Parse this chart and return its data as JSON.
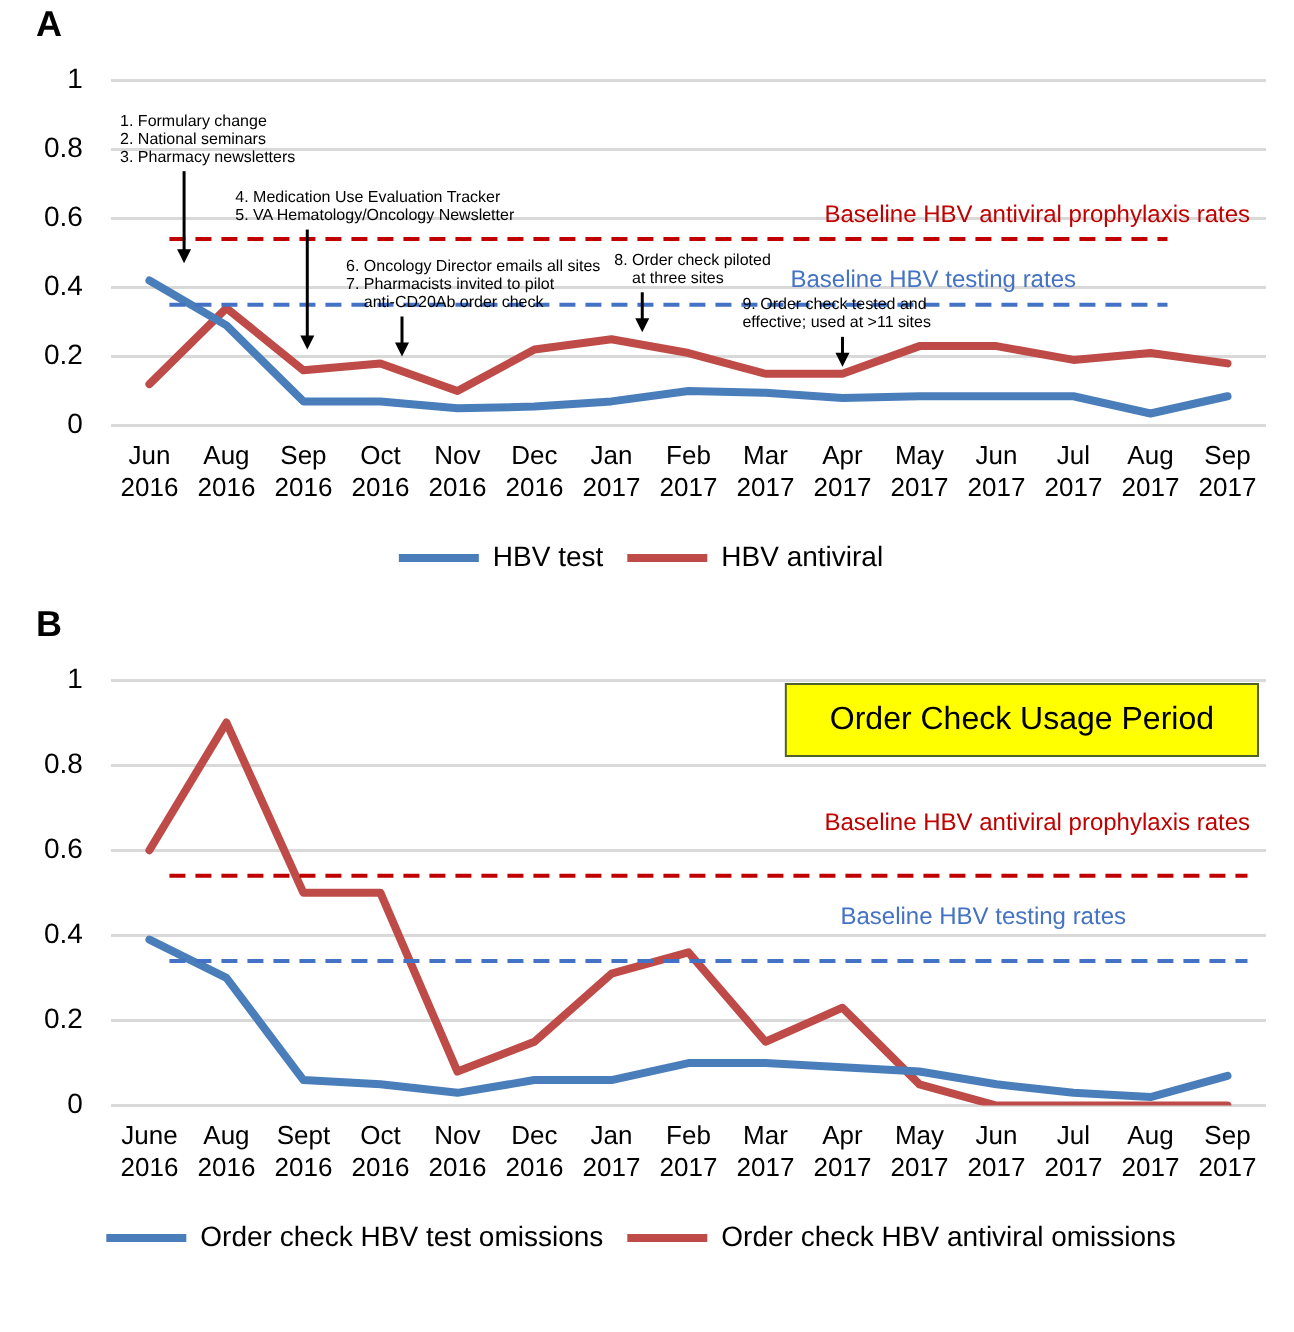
{
  "chart_data": [
    {
      "type": "line",
      "title": "A",
      "categories": [
        "Jun 2016",
        "Aug 2016",
        "Sep 2016",
        "Oct 2016",
        "Nov 2016",
        "Dec 2016",
        "Jan 2017",
        "Feb 2017",
        "Mar 2017",
        "Apr 2017",
        "May 2017",
        "Jun 2017",
        "Jul 2017",
        "Aug 2017",
        "Sep 2017"
      ],
      "series": [
        {
          "name": "HBV test",
          "color": "#4a7ebb",
          "values": [
            0.42,
            0.29,
            0.07,
            0.07,
            0.05,
            0.055,
            0.07,
            0.1,
            0.095,
            0.08,
            0.085,
            0.085,
            0.085,
            0.035,
            0.085
          ]
        },
        {
          "name": "HBV antiviral",
          "color": "#be4b48",
          "values": [
            0.12,
            0.34,
            0.16,
            0.18,
            0.1,
            0.22,
            0.25,
            0.21,
            0.15,
            0.15,
            0.23,
            0.23,
            0.19,
            0.21,
            0.18
          ]
        }
      ],
      "ylim": [
        0,
        1
      ],
      "yticks": [
        0,
        0.2,
        0.4,
        0.6,
        0.8,
        1
      ],
      "grid": "y",
      "legend": "bottom",
      "marker": "none",
      "line_style": "solid",
      "ref_lines": [
        {
          "axis": "y",
          "value": 0.54,
          "label": "Baseline HBV antiviral prophylaxis rates",
          "color": "#c00000",
          "line_style": "dashed"
        },
        {
          "axis": "y",
          "value": 0.35,
          "label": "Baseline HBV testing rates",
          "color": "#4472c4",
          "line_style": "dashed"
        }
      ],
      "annotations": [
        "1. Formulary change\n2. National seminars\n3. Pharmacy newsletters",
        "4. Medication Use Evaluation Tracker\n5. VA Hematology/Oncology Newsletter",
        "6. Oncology Director emails all sites\n7. Pharmacists invited to pilot\n    anti-CD20Ab order check",
        "8. Order check piloted\n    at three sites",
        "9. Order check tested and\neffective; used at >11 sites"
      ]
    },
    {
      "type": "line",
      "title": "B",
      "categories": [
        "June 2016",
        "Aug 2016",
        "Sept 2016",
        "Oct 2016",
        "Nov 2016",
        "Dec 2016",
        "Jan 2017",
        "Feb 2017",
        "Mar 2017",
        "Apr 2017",
        "May 2017",
        "Jun 2017",
        "Jul 2017",
        "Aug 2017",
        "Sep 2017"
      ],
      "series": [
        {
          "name": "Order check HBV test omissions",
          "color": "#4a7ebb",
          "values": [
            0.39,
            0.3,
            0.06,
            0.05,
            0.03,
            0.06,
            0.06,
            0.1,
            0.1,
            0.09,
            0.08,
            0.05,
            0.03,
            0.02,
            0.07
          ]
        },
        {
          "name": "Order check HBV antiviral omissions",
          "color": "#be4b48",
          "values": [
            0.6,
            0.9,
            0.5,
            0.5,
            0.08,
            0.15,
            0.31,
            0.36,
            0.15,
            0.23,
            0.05,
            0.0,
            0.0,
            0.0,
            0.0
          ]
        }
      ],
      "ylim": [
        0,
        1
      ],
      "yticks": [
        0,
        0.2,
        0.4,
        0.6,
        0.8,
        1
      ],
      "grid": "y",
      "legend": "bottom",
      "marker": "none",
      "line_style": "solid",
      "ref_lines": [
        {
          "axis": "y",
          "value": 0.54,
          "label": "Baseline HBV antiviral prophylaxis rates",
          "color": "#c00000",
          "line_style": "dashed"
        },
        {
          "axis": "y",
          "value": 0.34,
          "label": "Baseline HBV testing rates",
          "color": "#4472c4",
          "line_style": "dashed"
        }
      ],
      "annotations": [
        "Order Check Usage Period"
      ]
    }
  ]
}
